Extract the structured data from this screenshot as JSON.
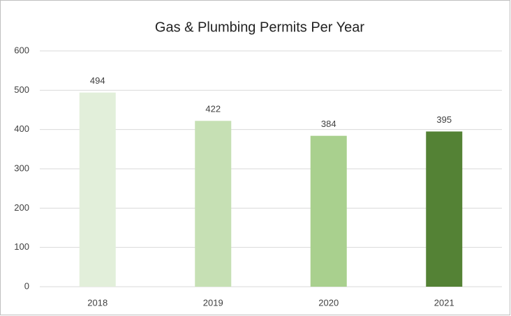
{
  "chart_data": {
    "type": "bar",
    "title": "Gas & Plumbing Permits Per Year",
    "categories": [
      "2018",
      "2019",
      "2020",
      "2021"
    ],
    "values": [
      494,
      422,
      384,
      395
    ],
    "colors": [
      "#e2efda",
      "#c6e0b4",
      "#a9d08e",
      "#548235"
    ],
    "ylim": [
      0,
      600
    ],
    "yticks": [
      0,
      100,
      200,
      300,
      400,
      500,
      600
    ],
    "grid": true
  }
}
